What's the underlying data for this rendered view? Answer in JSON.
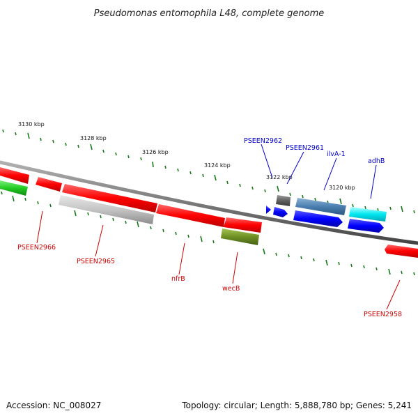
{
  "title": "Pseudomonas entomophila L48, complete genome",
  "footer": {
    "accession": "Accession: NC_008027",
    "summary": "Topology: circular; Length: 5,888,780 bp; Genes: 5,241"
  },
  "colors": {
    "backbone": "#7a7a7a",
    "tick_green": "#1a7a1a",
    "label_red": "#cc0000",
    "label_blue": "#0000cc"
  },
  "scale_ticks": [
    {
      "label": "3130 kbp"
    },
    {
      "label": "3128 kbp"
    },
    {
      "label": "3126 kbp"
    },
    {
      "label": "3124 kbp"
    },
    {
      "label": "3122 kbp"
    },
    {
      "label": "3120 kbp"
    }
  ],
  "genes_top_strand_labels": [
    {
      "label": "PSEEN2962",
      "color": "#0000cc"
    },
    {
      "label": "PSEEN2961",
      "color": "#0000cc"
    },
    {
      "label": "ilvA-1",
      "color": "#0000cc"
    },
    {
      "label": "adhB",
      "color": "#0000cc"
    }
  ],
  "genes_bottom_strand_labels": [
    {
      "label": "PSEEN2966",
      "color": "#cc0000"
    },
    {
      "label": "PSEEN2965",
      "color": "#cc0000"
    },
    {
      "label": "nfrB",
      "color": "#cc0000"
    },
    {
      "label": "wecB",
      "color": "#cc0000"
    },
    {
      "label": "PSEEN2958",
      "color": "#cc0000"
    }
  ]
}
